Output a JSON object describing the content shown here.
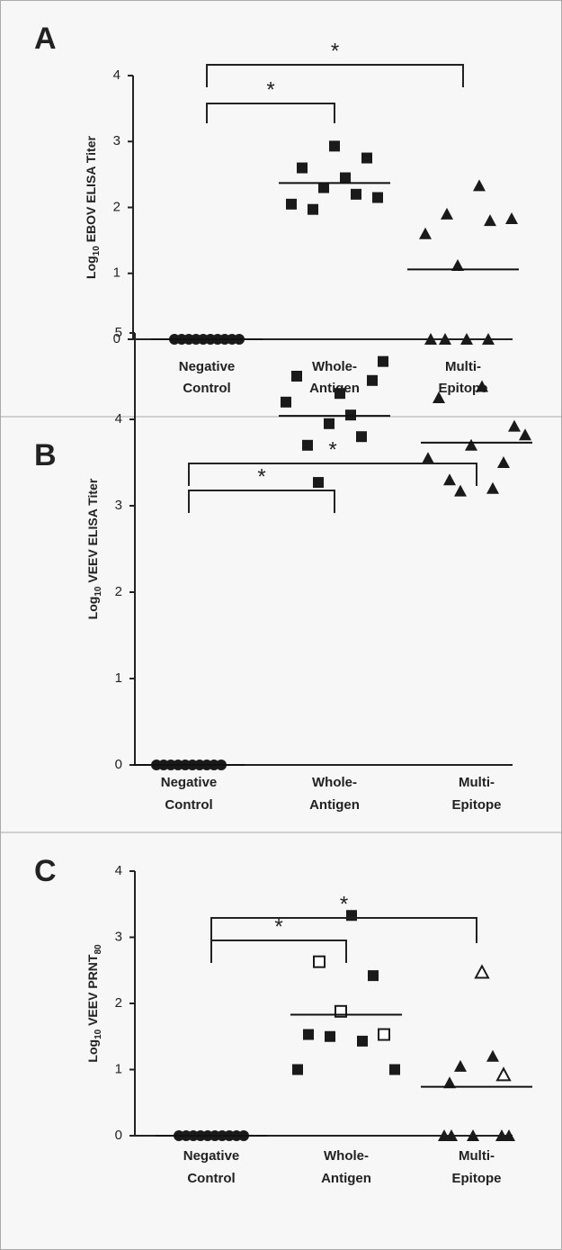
{
  "chart_data": [
    {
      "type": "scatter",
      "panel": "A",
      "ylabel": [
        {
          "text": "Log"
        },
        {
          "text": "10",
          "sub": true
        },
        {
          "text": " EBOV ELISA Titer"
        }
      ],
      "categories": [
        [
          "Negative",
          "Control"
        ],
        [
          "Whole-",
          "Antigen"
        ],
        [
          "Multi-",
          "Epitope"
        ]
      ],
      "ylim": [
        0,
        4
      ],
      "yticks": [
        0,
        1,
        2,
        3,
        4
      ],
      "series": [
        {
          "marker": "circle",
          "color": "#1a1a1a",
          "values": [
            0,
            0,
            0,
            0,
            0,
            0,
            0,
            0,
            0,
            0
          ],
          "mean": 0
        },
        {
          "marker": "square",
          "color": "#1a1a1a",
          "values": [
            2.05,
            2.6,
            1.97,
            2.3,
            2.93,
            2.45,
            2.2,
            2.75,
            2.15
          ],
          "mean": 2.37
        },
        {
          "marker": "triangle",
          "color": "#1a1a1a",
          "values": [
            0,
            1.6,
            0,
            1.9,
            1.12,
            0,
            2.33,
            1.8,
            0,
            1.83
          ],
          "mean": 1.06
        }
      ],
      "brackets": [
        {
          "from": 0,
          "to": 1,
          "label": "*"
        },
        {
          "from": 0,
          "to": 2,
          "label": "*"
        }
      ]
    },
    {
      "type": "scatter",
      "panel": "B",
      "ylabel": [
        {
          "text": "Log"
        },
        {
          "text": "10",
          "sub": true
        },
        {
          "text": " VEEV ELISA Titer"
        }
      ],
      "categories": [
        [
          "Negative",
          "Control"
        ],
        [
          "Whole-",
          "Antigen"
        ],
        [
          "Multi-",
          "Epitope"
        ]
      ],
      "ylim": [
        0,
        5
      ],
      "yticks": [
        0,
        1,
        2,
        3,
        4,
        5
      ],
      "series": [
        {
          "marker": "circle",
          "color": "#1a1a1a",
          "values": [
            0,
            0,
            0,
            0,
            0,
            0,
            0,
            0,
            0,
            0
          ],
          "mean": 0
        },
        {
          "marker": "square",
          "color": "#1a1a1a",
          "values": [
            4.2,
            4.5,
            3.7,
            3.27,
            3.95,
            4.3,
            4.05,
            3.8,
            4.45,
            4.67
          ],
          "mean": 4.04
        },
        {
          "marker": "triangle",
          "color": "#1a1a1a",
          "values": [
            3.55,
            4.25,
            3.3,
            3.17,
            3.7,
            4.38,
            3.2,
            3.5,
            3.92,
            3.82
          ],
          "mean": 3.73
        }
      ],
      "brackets": [
        {
          "from": 0,
          "to": 1,
          "label": "*"
        },
        {
          "from": 0,
          "to": 2,
          "label": "*"
        }
      ]
    },
    {
      "type": "scatter",
      "panel": "C",
      "ylabel": [
        {
          "text": "Log"
        },
        {
          "text": "10",
          "sub": true
        },
        {
          "text": " VEEV PRNT"
        },
        {
          "text": "80",
          "sub": true
        }
      ],
      "categories": [
        [
          "Negative",
          "Control"
        ],
        [
          "Whole-",
          "Antigen"
        ],
        [
          "Multi-",
          "Epitope"
        ]
      ],
      "ylim": [
        0,
        4
      ],
      "yticks": [
        0,
        1,
        2,
        3,
        4
      ],
      "series": [
        {
          "marker": "circle",
          "color": "#1a1a1a",
          "values": [
            0,
            0,
            0,
            0,
            0,
            0,
            0,
            0,
            0,
            0
          ],
          "mean": 0,
          "open": [
            false,
            false,
            false,
            false,
            false,
            false,
            false,
            false,
            false,
            false
          ]
        },
        {
          "marker": "square",
          "color": "#1a1a1a",
          "values": [
            1.0,
            1.53,
            2.63,
            1.5,
            1.88,
            3.33,
            1.43,
            2.42,
            1.53,
            1.0
          ],
          "mean": 1.83,
          "open": [
            false,
            false,
            true,
            false,
            true,
            false,
            false,
            false,
            true,
            false
          ]
        },
        {
          "marker": "triangle",
          "color": "#1a1a1a",
          "values": [
            0,
            0,
            0.8,
            1.05,
            0,
            2.47,
            1.2,
            0.92,
            0,
            0
          ],
          "mean": 0.74,
          "open": [
            false,
            false,
            false,
            false,
            false,
            true,
            false,
            true,
            false,
            false
          ]
        }
      ],
      "brackets": [
        {
          "from": 0,
          "to": 1,
          "label": "*"
        },
        {
          "from": 0,
          "to": 2,
          "label": "*"
        }
      ]
    }
  ]
}
